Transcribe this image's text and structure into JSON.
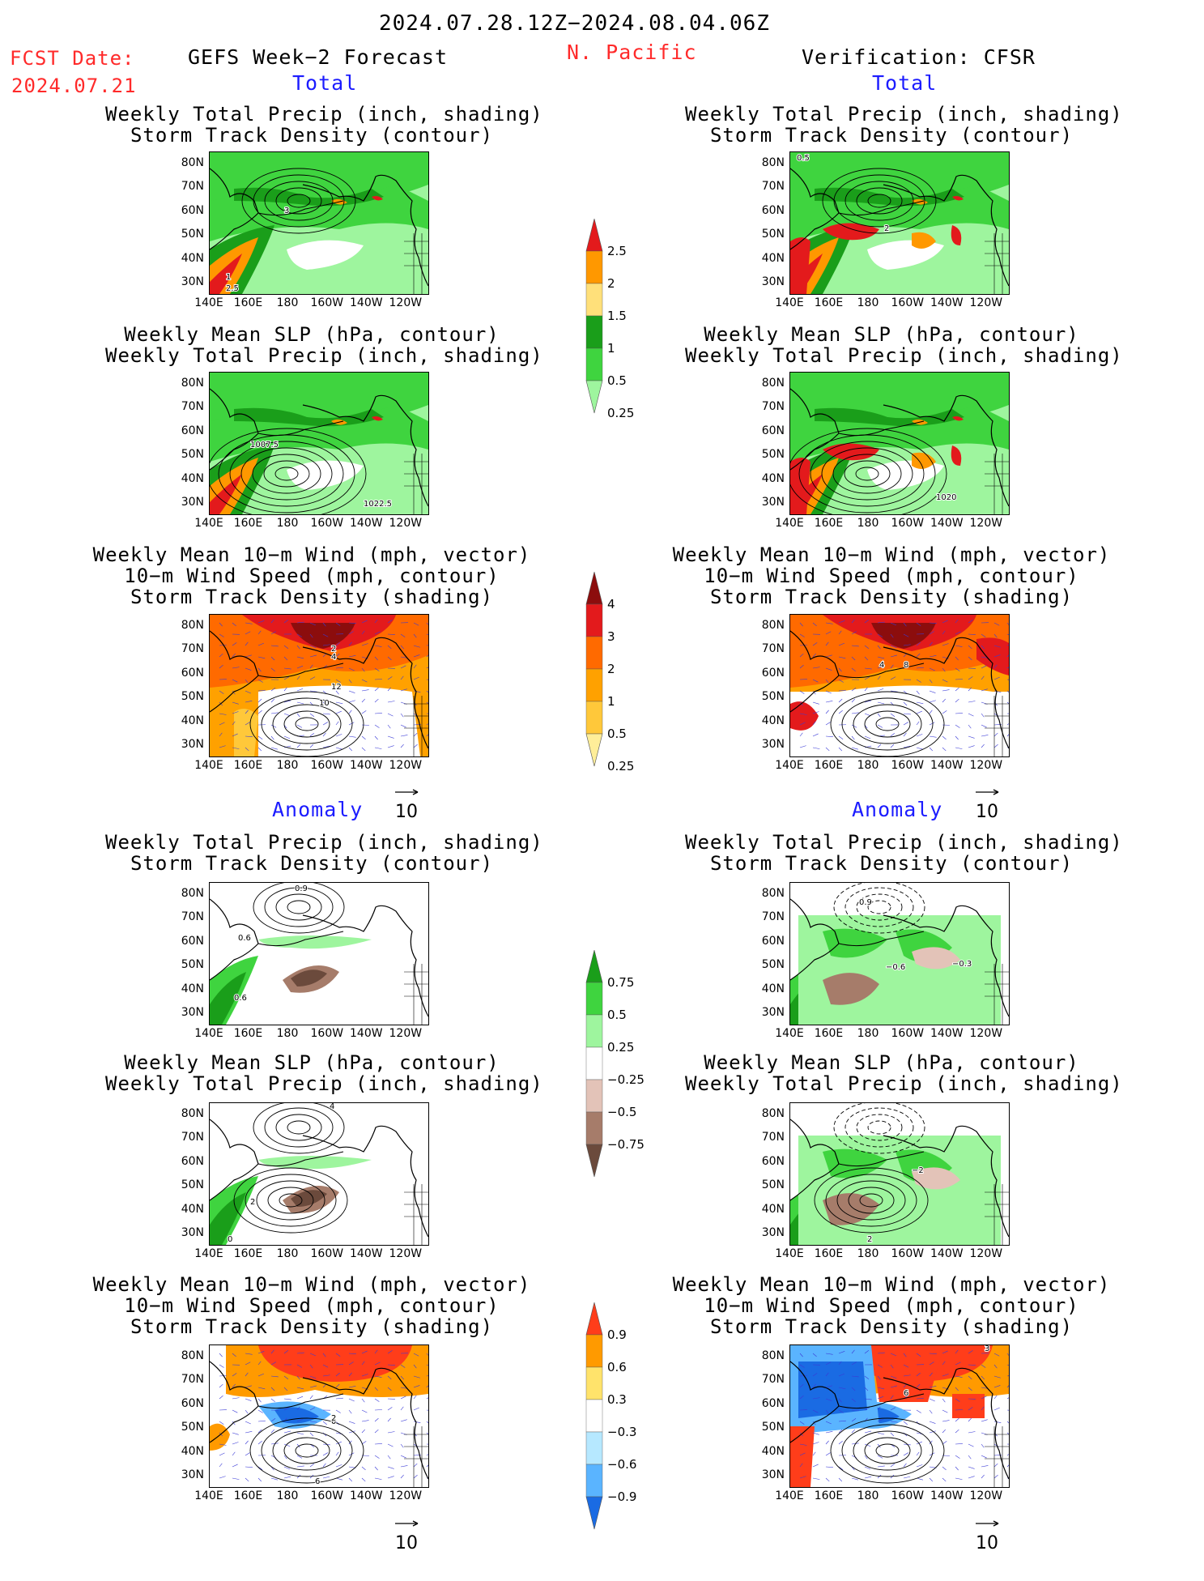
{
  "header": {
    "date_range": "2024.07.28.12Z−2024.08.04.06Z",
    "fcst_label": "FCST Date:",
    "fcst_date": "2024.07.21",
    "forecast_title": "GEFS Week−2 Forecast",
    "region": "N. Pacific",
    "verification": "Verification: CFSR"
  },
  "sections": {
    "total": "Total",
    "anomaly": "Anomaly"
  },
  "titles": {
    "precip_track": "Weekly Total Precip (inch, shading)\nStorm Track Density (contour)",
    "slp_precip": "Weekly Mean SLP (hPa, contour)\nWeekly Total Precip (inch, shading)",
    "wind_track": "Weekly Mean 10−m Wind (mph, vector)\n10−m Wind Speed (mph, contour)\nStorm Track Density (shading)"
  },
  "axes": {
    "lat": [
      "80N",
      "70N",
      "60N",
      "50N",
      "40N",
      "30N"
    ],
    "lon": [
      "140E",
      "160E",
      "180",
      "160W",
      "140W",
      "120W"
    ]
  },
  "vector_ref": "10",
  "colorbars": {
    "precip_total": {
      "labels": [
        "2.5",
        "2",
        "1.5",
        "1",
        "0.5",
        "0.25"
      ],
      "colors": [
        "#e31a1c",
        "#ff9800",
        "#ffe07a",
        "#1a9e1a",
        "#3fd43f",
        "#9ef59e"
      ]
    },
    "track_total": {
      "labels": [
        "4",
        "3",
        "2",
        "1",
        "0.5",
        "0.25"
      ],
      "colors": [
        "#8c0d0d",
        "#e31a1c",
        "#ff6a00",
        "#ffa100",
        "#ffc83a",
        "#ffee99"
      ]
    },
    "precip_anom": {
      "labels": [
        "0.75",
        "0.5",
        "0.25",
        "−0.25",
        "−0.5",
        "−0.75"
      ],
      "colors": [
        "#1a9e1a",
        "#3fd43f",
        "#9ef59e",
        "#ffffff",
        "#e3c3b8",
        "#a67c6a",
        "#6b4a3c"
      ]
    },
    "track_anom": {
      "labels": [
        "0.9",
        "0.6",
        "0.3",
        "−0.3",
        "−0.6",
        "−0.9"
      ],
      "colors": [
        "#ff3d1a",
        "#ff9a00",
        "#ffe36b",
        "#ffffff",
        "#b6e8ff",
        "#5ab4ff",
        "#1a6be3"
      ]
    }
  },
  "panels": [
    {
      "id": "p1",
      "labels": [
        {
          "t": "3"
        },
        {
          "t": "1"
        },
        {
          "t": "2.5"
        }
      ]
    },
    {
      "id": "p2",
      "labels": [
        {
          "t": "0.5"
        },
        {
          "t": "2"
        }
      ]
    },
    {
      "id": "p3",
      "labels": [
        {
          "t": "1007.5"
        },
        {
          "t": "1022.5"
        }
      ]
    },
    {
      "id": "p4",
      "labels": [
        {
          "t": "1020"
        }
      ]
    },
    {
      "id": "p5",
      "labels": [
        {
          "t": "2"
        },
        {
          "t": "4"
        },
        {
          "t": "12"
        },
        {
          "t": "10"
        }
      ]
    },
    {
      "id": "p6",
      "labels": [
        {
          "t": "4"
        },
        {
          "t": "8"
        }
      ]
    },
    {
      "id": "p7",
      "labels": [
        {
          "t": "0.9"
        },
        {
          "t": "0.6"
        },
        {
          "t": "0.6"
        }
      ]
    },
    {
      "id": "p8",
      "labels": [
        {
          "t": "0.9"
        },
        {
          "t": "−0.6"
        },
        {
          "t": "−0.3"
        }
      ]
    },
    {
      "id": "p9",
      "labels": [
        {
          "t": "4"
        },
        {
          "t": "2"
        },
        {
          "t": "0"
        }
      ]
    },
    {
      "id": "p10",
      "labels": [
        {
          "t": "−2"
        },
        {
          "t": "2"
        }
      ]
    },
    {
      "id": "p11",
      "labels": [
        {
          "t": "0"
        },
        {
          "t": "2"
        },
        {
          "t": "6"
        }
      ]
    },
    {
      "id": "p12",
      "labels": [
        {
          "t": "6"
        },
        {
          "t": "3"
        }
      ]
    }
  ]
}
